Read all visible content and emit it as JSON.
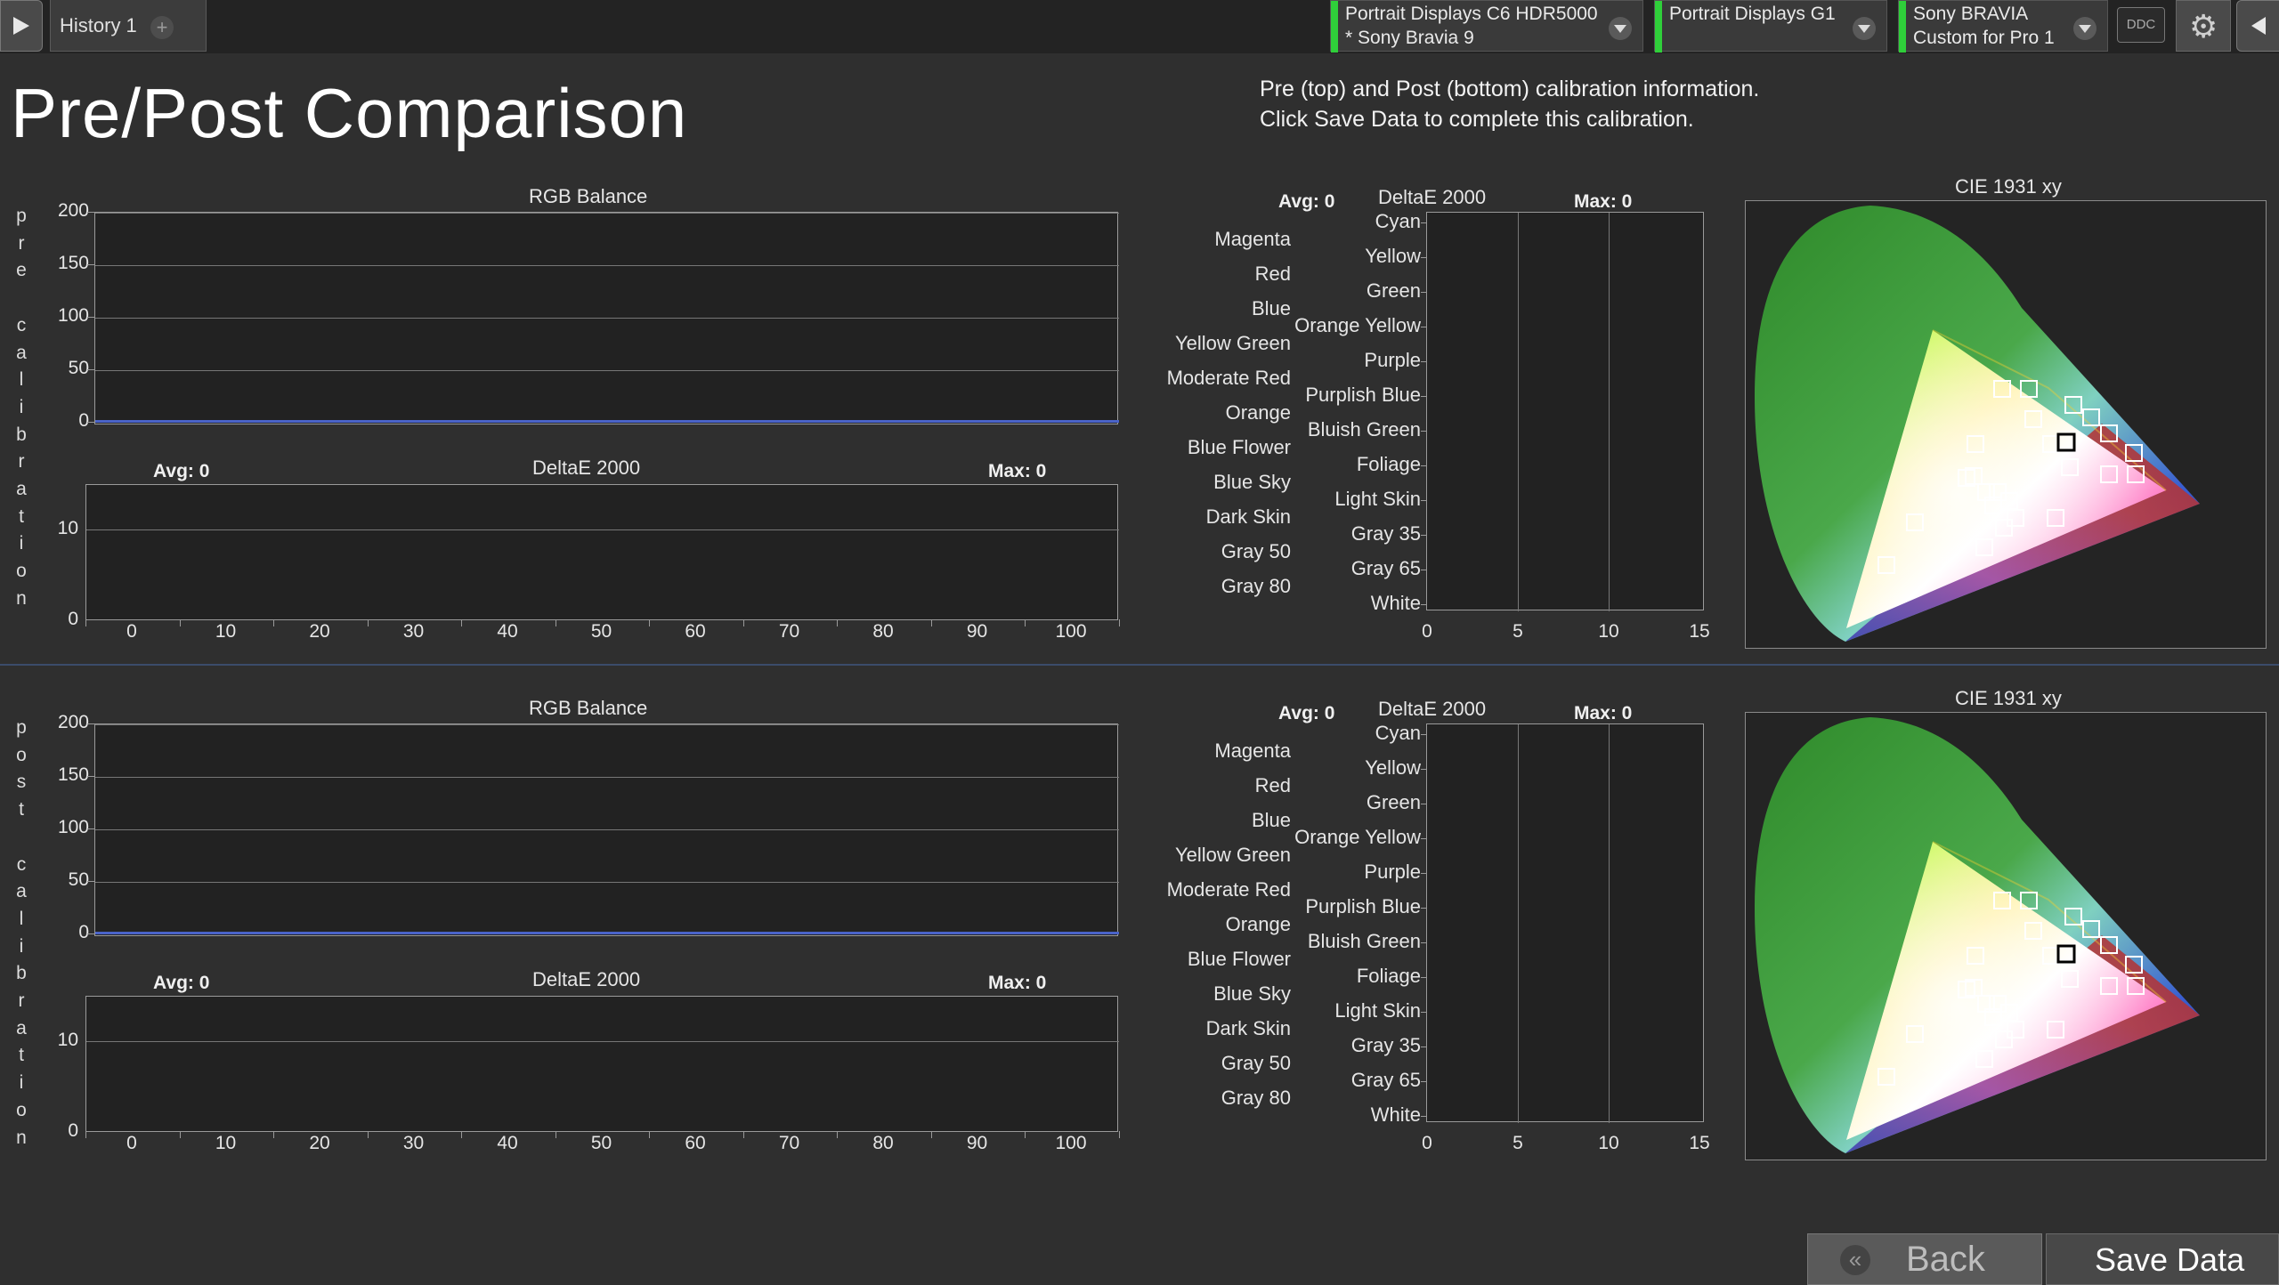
{
  "history_tab": {
    "label": "History 1",
    "add": "+"
  },
  "devices": [
    {
      "line1": "Portrait Displays C6 HDR5000",
      "line2": "* Sony Bravia 9"
    },
    {
      "line1": "Portrait Displays G1",
      "line2": ""
    },
    {
      "line1": "Sony BRAVIA",
      "line2": "Custom for Pro 1"
    }
  ],
  "ddc_label": "DDC",
  "page_title": "Pre/Post Comparison",
  "info": {
    "line1": "Pre (top) and Post (bottom) calibration information.",
    "line2": "Click Save Data to complete this calibration."
  },
  "sections": [
    {
      "side_label": "pre calibration"
    },
    {
      "side_label": "post calibration"
    }
  ],
  "rgb_balance": {
    "title": "RGB Balance",
    "y_ticks": [
      "200",
      "150",
      "100",
      "50",
      "0"
    ],
    "line_color": "#4a63c8"
  },
  "grayscale_deltae": {
    "title": "DeltaE 2000",
    "avg": "Avg: 0",
    "max": "Max: 0",
    "y_ticks": [
      "10",
      "0"
    ],
    "x_ticks": [
      "0",
      "10",
      "20",
      "30",
      "40",
      "50",
      "60",
      "70",
      "80",
      "90",
      "100"
    ]
  },
  "color_deltae": {
    "title": "DeltaE 2000",
    "avg": "Avg: 0",
    "max": "Max: 0",
    "left_labels": [
      "Magenta",
      "Red",
      "Blue",
      "Yellow Green",
      "Moderate Red",
      "Orange",
      "Blue Flower",
      "Blue Sky",
      "Dark Skin",
      "Gray 50",
      "Gray 80"
    ],
    "right_labels": [
      "Cyan",
      "Yellow",
      "Green",
      "Orange Yellow",
      "Purple",
      "Purplish Blue",
      "Bluish Green",
      "Foliage",
      "Light Skin",
      "Gray 35",
      "Gray 65",
      "White"
    ],
    "x_ticks": [
      "0",
      "5",
      "10",
      "15"
    ]
  },
  "cie": {
    "title": "CIE 1931 xy"
  },
  "buttons": {
    "back": "Back",
    "save": "Save Data"
  }
}
